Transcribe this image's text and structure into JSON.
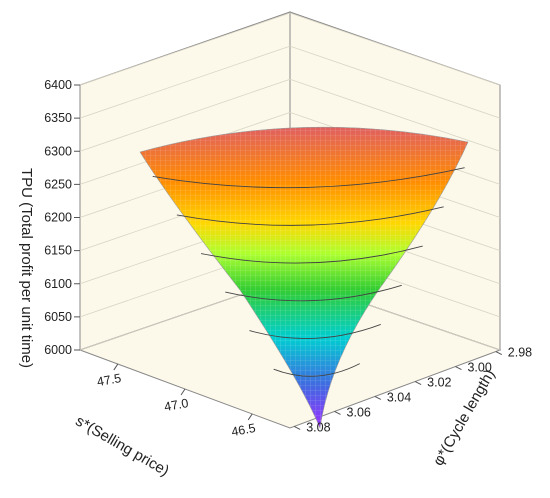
{
  "chart_data": {
    "type": "surface3d",
    "zlabel": "TPU (Total profit per unit time)",
    "xlabel": "s*(Selling price)",
    "ylabel": "φ*(Cycle length)",
    "z_ticks": [
      "6000",
      "6050",
      "6100",
      "6150",
      "6200",
      "6250",
      "6300",
      "6350",
      "6400"
    ],
    "x_ticks": [
      "47.5",
      "47.0",
      "46.5"
    ],
    "y_ticks": [
      "2.98",
      "3.00",
      "3.02",
      "3.04",
      "3.06",
      "3.08"
    ],
    "zlim": [
      6000,
      6400
    ],
    "surface": {
      "max_tpu": 6320,
      "min_tpu": 6010,
      "contour_levels": [
        6050,
        6100,
        6150,
        6200,
        6250,
        6300
      ],
      "colormap": [
        "#9b30ff",
        "#4169e1",
        "#00ced1",
        "#32cd32",
        "#adff2f",
        "#ffd700",
        "#ff8c00",
        "#e06060"
      ]
    },
    "grid": true,
    "box_background": "#fcf8ea"
  }
}
